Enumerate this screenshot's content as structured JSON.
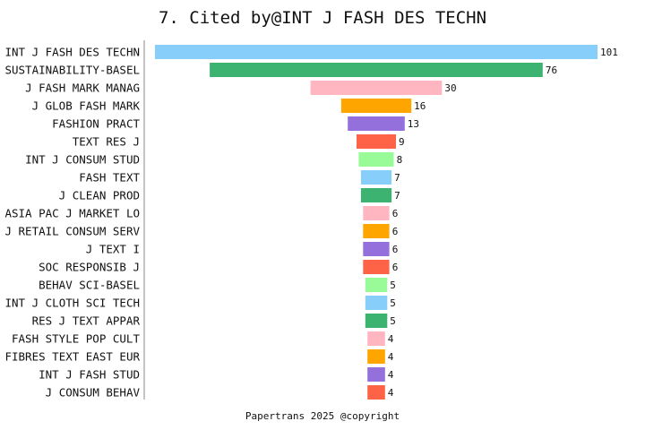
{
  "chart_data": {
    "type": "bar",
    "orientation": "horizontal-funnel",
    "title": "7. Cited by@INT J FASH DES TECHN",
    "footer": "Papertrans 2025 @copyright",
    "categories": [
      "INT J FASH DES TECHN",
      "SUSTAINABILITY-BASEL",
      "J FASH MARK MANAG",
      "J GLOB FASH MARK",
      "FASHION PRACT",
      "TEXT RES J",
      "INT J CONSUM STUD",
      "FASH TEXT",
      "J CLEAN PROD",
      "ASIA PAC J MARKET LO",
      "J RETAIL CONSUM SERV",
      "J TEXT I",
      "SOC RESPONSIB J",
      "BEHAV SCI-BASEL",
      "INT J CLOTH SCI TECH",
      "RES J TEXT APPAR",
      "FASH STYLE POP CULT",
      "FIBRES TEXT EAST EUR",
      "INT J FASH STUD",
      "J CONSUM BEHAV"
    ],
    "values": [
      101,
      76,
      30,
      16,
      13,
      9,
      8,
      7,
      7,
      6,
      6,
      6,
      6,
      5,
      5,
      5,
      4,
      4,
      4,
      4
    ],
    "colors": [
      "#87CEFA",
      "#3CB371",
      "#FFB6C1",
      "#FFA500",
      "#9370DB",
      "#FF6347",
      "#98FB98"
    ],
    "xlabel": "",
    "ylabel": ""
  }
}
